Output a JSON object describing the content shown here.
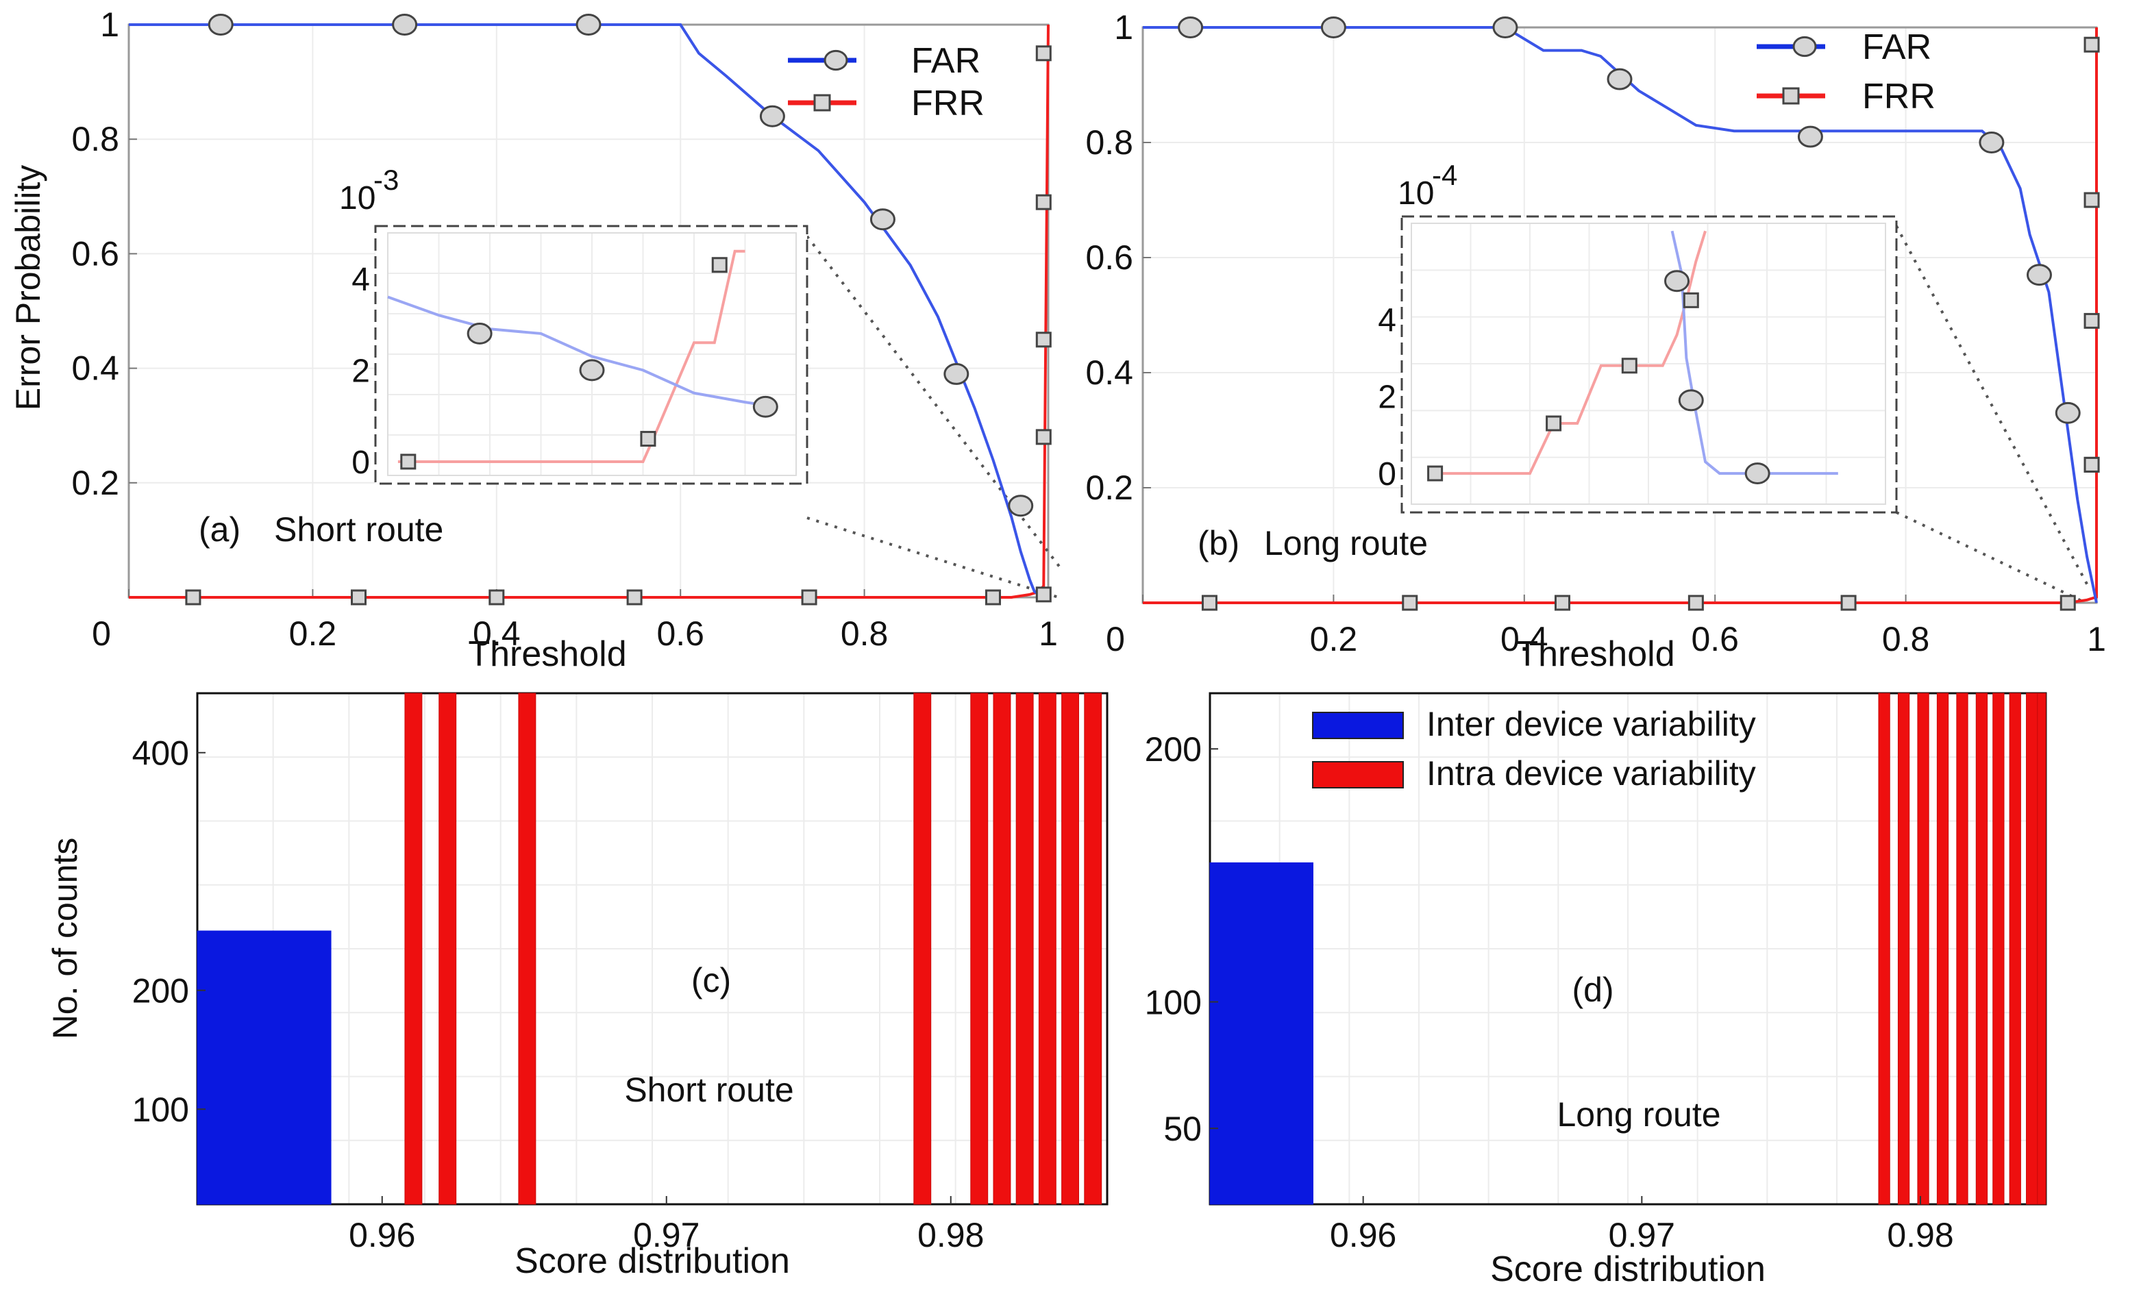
{
  "colors": {
    "far": "#3a55e8",
    "frr": "#f21e1e",
    "far_light": "#9aa6f4",
    "frr_light": "#f7a0a0",
    "inter_bar": "#0a18e0",
    "intra_bar": "#ee0f0f",
    "marker_fill": "#d6d6d6",
    "box": "#555555"
  },
  "chart_data": [
    {
      "id": "a",
      "type": "line",
      "panel_label": "(a)",
      "title": "Short route",
      "xlabel": "Threshold",
      "ylabel": "Error Probability",
      "xlim": [
        0,
        1
      ],
      "ylim": [
        0,
        1
      ],
      "x_ticks": [
        "0",
        "0.2",
        "0.4",
        "0.6",
        "0.8",
        "1"
      ],
      "y_ticks": [
        "0",
        "0.2",
        "0.4",
        "0.6",
        "0.8",
        "1"
      ],
      "legend": [
        "FAR",
        "FRR"
      ],
      "series": [
        {
          "name": "FAR",
          "x": [
            0,
            0.1,
            0.2,
            0.3,
            0.4,
            0.5,
            0.55,
            0.6,
            0.62,
            0.65,
            0.7,
            0.75,
            0.8,
            0.85,
            0.88,
            0.9,
            0.92,
            0.94,
            0.95,
            0.96,
            0.97,
            0.98,
            0.985,
            0.99,
            1
          ],
          "y": [
            1,
            1,
            1,
            1,
            1,
            1,
            1,
            1,
            0.95,
            0.91,
            0.84,
            0.78,
            0.69,
            0.58,
            0.49,
            0.41,
            0.33,
            0.24,
            0.19,
            0.14,
            0.08,
            0.03,
            0.01,
            0.005,
            0
          ]
        },
        {
          "name": "FRR",
          "x": [
            0,
            0.2,
            0.4,
            0.6,
            0.8,
            0.96,
            0.98,
            0.99,
            0.995,
            1
          ],
          "y": [
            0,
            0,
            0,
            0,
            0,
            0,
            0.005,
            0.01,
            0.02,
            1
          ]
        }
      ],
      "markers": {
        "FAR": {
          "x": [
            0.1,
            0.3,
            0.5,
            0.7,
            0.82,
            0.9,
            0.97
          ],
          "y": [
            1,
            1,
            1,
            0.84,
            0.66,
            0.39,
            0.16
          ]
        },
        "FRR": {
          "x": [
            0.07,
            0.25,
            0.4,
            0.55,
            0.74,
            0.94,
            0.995,
            0.995,
            0.995,
            0.995,
            0.995
          ],
          "y": [
            0,
            0,
            0,
            0,
            0,
            0,
            0.28,
            0.45,
            0.69,
            0.95,
            0.005
          ]
        }
      },
      "inset": {
        "exponent": "10",
        "exponent_power": "-3",
        "y_ticks": [
          "0",
          "2",
          "4"
        ],
        "ylim": [
          -0.3,
          5
        ],
        "xlim": [
          0.945,
          0.985
        ],
        "far": {
          "x": [
            0.945,
            0.95,
            0.955,
            0.96,
            0.965,
            0.97,
            0.975,
            0.98,
            0.983
          ],
          "y": [
            3.6,
            3.2,
            2.9,
            2.8,
            2.3,
            2.0,
            1.5,
            1.3,
            1.2
          ]
        },
        "frr": {
          "x": [
            0.946,
            0.955,
            0.965,
            0.97,
            0.971,
            0.975,
            0.977,
            0.979,
            0.98
          ],
          "y": [
            0,
            0,
            0,
            0,
            0.5,
            2.6,
            2.6,
            4.6,
            4.6
          ]
        },
        "far_markers": {
          "x": [
            0.954,
            0.965,
            0.982
          ],
          "y": [
            2.8,
            2.0,
            1.2
          ]
        },
        "frr_markers": {
          "x": [
            0.947,
            0.9705,
            0.9775
          ],
          "y": [
            0,
            0.5,
            4.3
          ]
        }
      }
    },
    {
      "id": "b",
      "type": "line",
      "panel_label": "(b)",
      "title": "Long route",
      "xlabel": "Threshold",
      "ylabel": "",
      "xlim": [
        0,
        1
      ],
      "ylim": [
        0,
        1
      ],
      "x_ticks": [
        "0",
        "0.2",
        "0.4",
        "0.6",
        "0.8",
        "1"
      ],
      "y_ticks": [
        "0",
        "0.2",
        "0.4",
        "0.6",
        "0.8",
        "1"
      ],
      "legend": [
        "FAR",
        "FRR"
      ],
      "series": [
        {
          "name": "FAR",
          "x": [
            0,
            0.38,
            0.4,
            0.42,
            0.44,
            0.46,
            0.48,
            0.5,
            0.52,
            0.55,
            0.58,
            0.62,
            0.66,
            0.7,
            0.75,
            0.8,
            0.85,
            0.88,
            0.9,
            0.92,
            0.93,
            0.95,
            0.96,
            0.97,
            0.98,
            0.99,
            1
          ],
          "y": [
            1,
            1,
            0.98,
            0.96,
            0.96,
            0.96,
            0.95,
            0.92,
            0.89,
            0.86,
            0.83,
            0.82,
            0.82,
            0.82,
            0.82,
            0.82,
            0.82,
            0.82,
            0.79,
            0.72,
            0.64,
            0.54,
            0.42,
            0.3,
            0.18,
            0.08,
            0
          ]
        },
        {
          "name": "FRR",
          "x": [
            0,
            0.2,
            0.4,
            0.6,
            0.8,
            0.97,
            0.99,
            1,
            1
          ],
          "y": [
            0,
            0,
            0,
            0,
            0,
            0,
            0.005,
            0.01,
            1
          ]
        }
      ],
      "markers": {
        "FAR": {
          "x": [
            0.05,
            0.2,
            0.38,
            0.5,
            0.7,
            0.89,
            0.94,
            0.97
          ],
          "y": [
            1,
            1,
            1,
            0.91,
            0.81,
            0.8,
            0.57,
            0.33
          ]
        },
        "FRR": {
          "x": [
            0.07,
            0.28,
            0.44,
            0.58,
            0.74,
            0.97,
            0.995,
            0.995,
            0.995,
            0.995,
            0.995
          ],
          "y": [
            0,
            0,
            0,
            0,
            0,
            0,
            0.24,
            0.49,
            0.7,
            0.97,
            0.24
          ]
        }
      },
      "inset": {
        "exponent": "10",
        "exponent_power": "-4",
        "y_ticks": [
          "0",
          "2",
          "4"
        ],
        "ylim": [
          -0.8,
          6.5
        ],
        "xlim": [
          0.9,
          1.0
        ],
        "far": {
          "x": [
            0.955,
            0.957,
            0.958,
            0.96,
            0.962,
            0.965,
            0.97,
            0.98,
            0.99
          ],
          "y": [
            6.3,
            5.2,
            3.0,
            1.6,
            0.3,
            0,
            0,
            0,
            0
          ]
        },
        "frr": {
          "x": [
            0.905,
            0.92,
            0.925,
            0.93,
            0.935,
            0.94,
            0.945,
            0.95,
            0.953,
            0.956,
            0.958,
            0.96,
            0.962
          ],
          "y": [
            0,
            0,
            0,
            1.3,
            1.3,
            2.8,
            2.8,
            2.8,
            2.8,
            3.6,
            4.5,
            5.5,
            6.3
          ]
        },
        "far_markers": {
          "x": [
            0.956,
            0.959,
            0.973
          ],
          "y": [
            5.0,
            1.9,
            0
          ]
        },
        "frr_markers": {
          "x": [
            0.905,
            0.93,
            0.946,
            0.959
          ],
          "y": [
            0,
            1.3,
            2.8,
            4.5
          ]
        }
      }
    },
    {
      "id": "c",
      "type": "bar",
      "panel_label": "(c)",
      "title": "Short route",
      "xlabel": "Score distribution",
      "ylabel": "No. of counts",
      "xlim": [
        0.9535,
        0.9855
      ],
      "ylim": [
        20,
        450
      ],
      "x_ticks": [
        "0.96",
        "0.97",
        "0.98"
      ],
      "y_ticks": [
        "100",
        "200",
        "400"
      ],
      "series": [
        {
          "name": "Inter device variability",
          "bins": [
            [
              0.9535,
              0.9582
            ]
          ],
          "values": [
            250
          ]
        },
        {
          "name": "Intra device variability",
          "bins": [
            [
              0.9608,
              0.9614
            ],
            [
              0.962,
              0.9626
            ],
            [
              0.9648,
              0.9654
            ],
            [
              0.9787,
              0.9793
            ],
            [
              0.9807,
              0.9813
            ],
            [
              0.9815,
              0.9821
            ],
            [
              0.9823,
              0.9829
            ],
            [
              0.9831,
              0.9837
            ],
            [
              0.9839,
              0.9845
            ],
            [
              0.9847,
              0.9853
            ]
          ],
          "values": [
            450,
            450,
            450,
            450,
            450,
            450,
            450,
            450,
            450,
            450
          ]
        }
      ]
    },
    {
      "id": "d",
      "type": "bar",
      "panel_label": "(d)",
      "title": "Long route",
      "xlabel": "Score distribution",
      "ylabel": "",
      "xlim": [
        0.9545,
        0.9845
      ],
      "ylim": [
        20,
        222
      ],
      "x_ticks": [
        "0.96",
        "0.97",
        "0.98"
      ],
      "y_ticks": [
        "50",
        "100",
        "200"
      ],
      "legend": [
        "Inter device variability",
        "Intra device variability"
      ],
      "series": [
        {
          "name": "Inter device variability",
          "bins": [
            [
              0.9545,
              0.9582
            ]
          ],
          "values": [
            155
          ]
        },
        {
          "name": "Intra device variability",
          "bins": [
            [
              0.9785,
              0.9789
            ],
            [
              0.9792,
              0.9796
            ],
            [
              0.9799,
              0.9803
            ],
            [
              0.9806,
              0.981
            ],
            [
              0.9813,
              0.9817
            ],
            [
              0.982,
              0.9824
            ],
            [
              0.9826,
              0.983
            ],
            [
              0.9832,
              0.9836
            ],
            [
              0.9838,
              0.9842
            ],
            [
              0.9842,
              0.9845
            ]
          ],
          "values": [
            222,
            222,
            222,
            222,
            222,
            222,
            222,
            222,
            222,
            222
          ]
        }
      ]
    }
  ]
}
